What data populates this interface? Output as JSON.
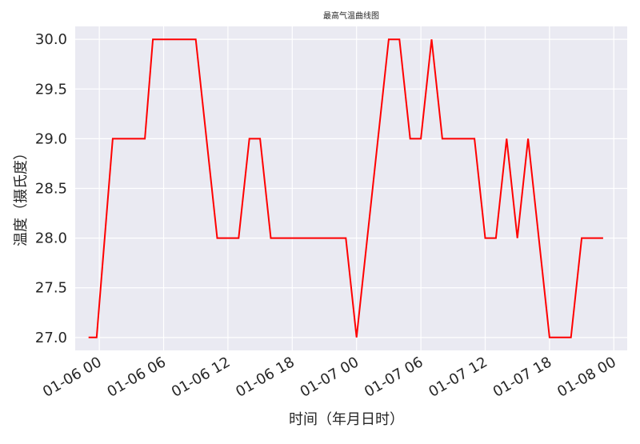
{
  "chart_data": {
    "type": "line",
    "title": "最高气温曲线图",
    "xlabel": "时间（年月日时）",
    "ylabel": "温度（摄氏度）",
    "x_tick_labels": [
      "01-06 00",
      "01-06 06",
      "01-06 12",
      "01-06 18",
      "01-07 00",
      "01-07 06",
      "01-07 12",
      "01-07 18",
      "01-08 00"
    ],
    "y_tick_labels": [
      "27.0",
      "27.5",
      "28.0",
      "28.5",
      "29.0",
      "29.5",
      "30.0"
    ],
    "x_ticks": [
      "2024-01-06 00:00",
      "2024-01-06 06:00",
      "2024-01-06 12:00",
      "2024-01-06 18:00",
      "2024-01-07 00:00",
      "2024-01-07 06:00",
      "2024-01-07 12:00",
      "2024-01-07 18:00",
      "2024-01-08 00:00"
    ],
    "y_ticks": [
      27.0,
      27.5,
      28.0,
      28.5,
      29.0,
      29.5,
      30.0
    ],
    "xlim": [
      "2024-01-05 21:45",
      "2024-01-08 01:15"
    ],
    "ylim": [
      26.87,
      30.13
    ],
    "grid": true,
    "colors": {
      "line": "#ff0000",
      "plot_bg": "#eaeaf2",
      "grid": "#ffffff",
      "text": "#262626"
    },
    "series": [
      {
        "x": [
          "2024-01-05 23:00",
          "2024-01-05 23:45",
          "2024-01-06 01:15",
          "2024-01-06 04:15",
          "2024-01-06 05:00",
          "2024-01-06 07:00",
          "2024-01-06 09:00",
          "2024-01-06 11:00",
          "2024-01-06 13:00",
          "2024-01-06 14:00",
          "2024-01-06 15:00",
          "2024-01-06 16:00",
          "2024-01-06 23:00",
          "2024-01-07 00:00",
          "2024-01-07 03:00",
          "2024-01-07 04:00",
          "2024-01-07 05:00",
          "2024-01-07 06:00",
          "2024-01-07 07:00",
          "2024-01-07 08:00",
          "2024-01-07 11:00",
          "2024-01-07 12:00",
          "2024-01-07 13:00",
          "2024-01-07 14:00",
          "2024-01-07 15:00",
          "2024-01-07 16:00",
          "2024-01-07 18:00",
          "2024-01-07 20:00",
          "2024-01-07 21:00",
          "2024-01-07 23:00"
        ],
        "values": [
          27,
          27,
          29,
          29,
          30,
          30,
          30,
          28,
          28,
          29,
          29,
          28,
          28,
          27,
          30,
          30,
          29,
          29,
          30,
          29,
          29,
          28,
          28,
          29,
          28,
          29,
          27,
          27,
          28,
          28
        ]
      }
    ]
  }
}
